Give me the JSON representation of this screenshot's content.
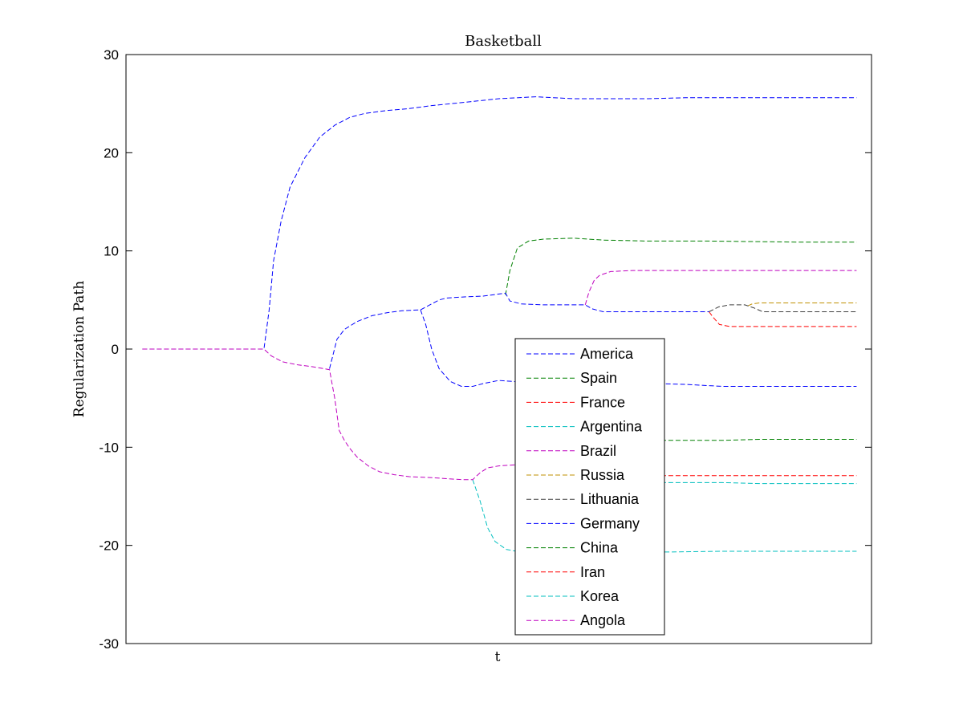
{
  "chart_data": {
    "type": "line",
    "title": "Basketball",
    "xlabel": "t",
    "ylabel": "Regularization Path",
    "xlim": [
      0,
      100
    ],
    "ylim": [
      -30,
      30
    ],
    "yticks": [
      30,
      20,
      10,
      0,
      -10,
      -20,
      -30
    ],
    "ytick_labels": [
      "30",
      "20",
      "10",
      "0",
      "-10",
      "-20",
      "-30"
    ],
    "grid": false,
    "legend_position": "center-bottom",
    "line_style": "dashed",
    "series": [
      {
        "name": "America",
        "color": "#0000ff",
        "x": [
          2.2,
          18.5,
          19.2,
          19.8,
          20.8,
          22,
          24,
          26,
          28,
          30,
          32,
          35,
          38,
          41,
          45,
          50,
          55,
          60,
          65,
          70,
          75,
          80,
          85,
          90,
          98
        ],
        "y": [
          0,
          0,
          4,
          9,
          13,
          16.5,
          19.5,
          21.6,
          22.8,
          23.6,
          24,
          24.3,
          24.5,
          24.8,
          25.1,
          25.5,
          25.7,
          25.5,
          25.5,
          25.5,
          25.6,
          25.6,
          25.6,
          25.6,
          25.6
        ]
      },
      {
        "name": "Spain",
        "color": "#008000",
        "x": [
          50.9,
          51.5,
          52.5,
          54,
          56,
          60,
          64,
          70,
          78,
          90,
          98
        ],
        "y": [
          5.5,
          8,
          10.3,
          11,
          11.2,
          11.3,
          11.1,
          11.0,
          11.0,
          10.9,
          10.9
        ]
      },
      {
        "name": "France",
        "color": "#ff0000",
        "x": [
          78.2,
          78.8,
          79.6,
          81,
          85,
          90,
          98
        ],
        "y": [
          3.8,
          3.2,
          2.5,
          2.3,
          2.3,
          2.3,
          2.3
        ]
      },
      {
        "name": "Argentina",
        "color": "#00bfbf",
        "x": [
          46.5,
          47.5,
          48.5,
          49.5,
          51,
          53,
          56,
          62,
          70,
          80,
          90,
          98
        ],
        "y": [
          -13.3,
          -15.5,
          -18.2,
          -19.6,
          -20.4,
          -20.7,
          -20.8,
          -20.7,
          -20.7,
          -20.6,
          -20.6,
          -20.6
        ]
      },
      {
        "name": "Brazil",
        "color": "#bf00bf",
        "x": [
          61.6,
          62.1,
          62.8,
          63.5,
          65,
          68,
          72,
          80,
          90,
          98
        ],
        "y": [
          4.5,
          5.8,
          7,
          7.5,
          7.9,
          8.0,
          8.0,
          8.0,
          8.0,
          8.0
        ]
      },
      {
        "name": "Russia",
        "color": "#bf8f00",
        "x": [
          83.4,
          84,
          85,
          87,
          92,
          98
        ],
        "y": [
          4.4,
          4.6,
          4.7,
          4.7,
          4.7,
          4.7
        ]
      },
      {
        "name": "Lithuania",
        "color": "#404040",
        "x": [
          78.2,
          79.5,
          81,
          83,
          84.2,
          85.4,
          88,
          92,
          98
        ],
        "y": [
          3.8,
          4.3,
          4.5,
          4.5,
          4.2,
          3.8,
          3.8,
          3.8,
          3.8
        ]
      },
      {
        "name": "Germany",
        "color": "#0000ff",
        "x": [
          27.3,
          28.3,
          29.3,
          31,
          33,
          35,
          37,
          39.5,
          41.5,
          42,
          43,
          45,
          48,
          50.9,
          51.5,
          53,
          56,
          59,
          61.6,
          62.5,
          64,
          67,
          72,
          78.2,
          39.5,
          40.2,
          41,
          42,
          43.5,
          45,
          46.5,
          48,
          50,
          52,
          54,
          56,
          60,
          65,
          70,
          75,
          80,
          90,
          98
        ],
        "y": [
          -2,
          1,
          2,
          2.8,
          3.4,
          3.7,
          3.9,
          4.0,
          4.8,
          5.0,
          5.2,
          5.3,
          5.4,
          5.7,
          4.9,
          4.6,
          4.5,
          4.5,
          4.5,
          4.1,
          3.8,
          3.8,
          3.8,
          3.8,
          4.0,
          2.5,
          0,
          -2,
          -3.3,
          -3.8,
          -3.8,
          -3.5,
          -3.2,
          -3.3,
          -3.4,
          -3.5,
          -3.5,
          -3.5,
          -3.5,
          -3.6,
          -3.8,
          -3.8,
          -3.8
        ],
        "break_after": 23
      },
      {
        "name": "China",
        "color": "#008000",
        "x": [
          65,
          70,
          75,
          80,
          85,
          90,
          98
        ],
        "y": [
          -9.3,
          -9.3,
          -9.3,
          -9.3,
          -9.2,
          -9.2,
          -9.2
        ]
      },
      {
        "name": "Iran",
        "color": "#ff0000",
        "x": [
          65,
          70,
          75,
          80,
          85,
          90,
          98
        ],
        "y": [
          -12.9,
          -12.9,
          -12.9,
          -12.9,
          -12.9,
          -12.9,
          -12.9
        ]
      },
      {
        "name": "Korea",
        "color": "#00bfbf",
        "x": [
          65,
          70,
          75,
          80,
          85,
          90,
          98
        ],
        "y": [
          -13.7,
          -13.6,
          -13.6,
          -13.6,
          -13.7,
          -13.7,
          -13.7
        ]
      },
      {
        "name": "Angola",
        "color": "#bf00bf",
        "x": [
          2.2,
          18.5,
          19.5,
          21,
          23,
          25,
          26.6,
          27.3,
          28,
          28.6,
          29.3,
          30,
          31,
          32.5,
          34,
          36,
          38,
          41,
          43,
          45,
          46.5,
          47.5,
          48.5,
          50,
          52,
          54,
          56
        ],
        "y": [
          0,
          0,
          -0.7,
          -1.3,
          -1.6,
          -1.8,
          -2.0,
          -2.1,
          -5,
          -8.3,
          -9.3,
          -10.1,
          -11,
          -11.9,
          -12.5,
          -12.8,
          -13.0,
          -13.1,
          -13.2,
          -13.3,
          -13.3,
          -12.6,
          -12.1,
          -11.9,
          -11.8,
          -11.8,
          -11.8
        ]
      }
    ]
  }
}
